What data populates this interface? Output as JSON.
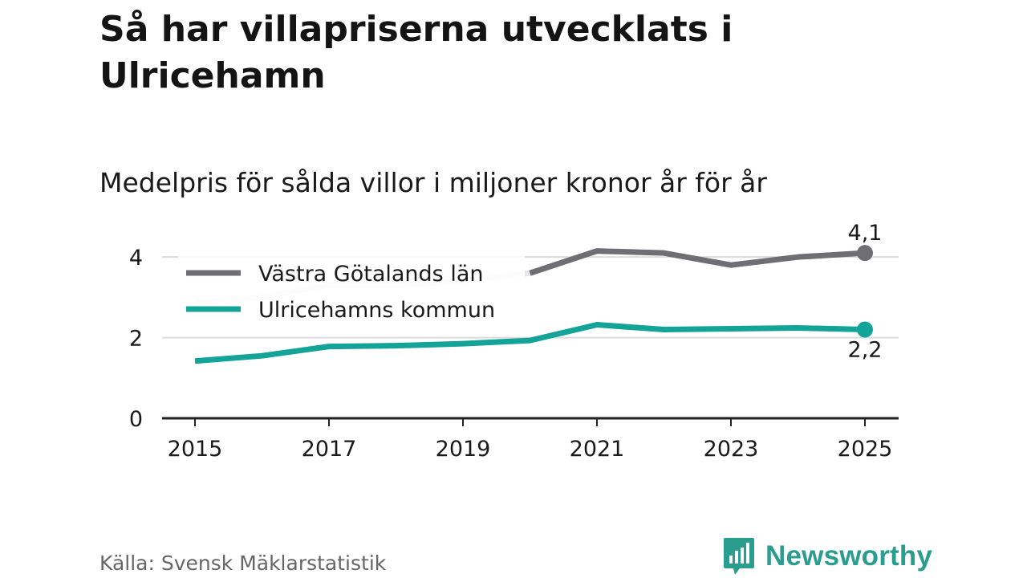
{
  "header": {
    "title": "Så har villapriserna utvecklats i Ulricehamn",
    "subtitle": "Medelpris för sålda villor i miljoner kronor år för år"
  },
  "footer": {
    "source": "Källa: Svensk Mäklarstatistik",
    "brand": "Newsworthy",
    "brand_icon": "newsworthy-logo-icon"
  },
  "colors": {
    "lan": "#6e6e74",
    "lan_faded": "#e6e6e6",
    "kommun": "#13a398",
    "grid": "#dcdcdc",
    "axis": "#222222",
    "brand": "#2a9d8f"
  },
  "chart_data": {
    "type": "line",
    "title": "Så har villapriserna utvecklats i Ulricehamn",
    "subtitle": "Medelpris för sålda villor i miljoner kronor år för år",
    "xlabel": "",
    "ylabel": "",
    "x": [
      2015,
      2016,
      2017,
      2018,
      2019,
      2020,
      2021,
      2022,
      2023,
      2024,
      2025
    ],
    "x_ticks": [
      2015,
      2017,
      2019,
      2021,
      2023,
      2025
    ],
    "x_tick_labels": [
      "2015",
      "2017",
      "2019",
      "2021",
      "2023",
      "2025"
    ],
    "y_ticks": [
      0,
      2,
      4
    ],
    "y_tick_labels": [
      "0",
      "2",
      "4"
    ],
    "ylim": [
      0,
      4.8
    ],
    "grid": true,
    "legend_position": "top-left",
    "series": [
      {
        "name": "Västra Götalands län",
        "values": [
          2.85,
          3.0,
          3.3,
          3.3,
          3.4,
          3.6,
          4.15,
          4.1,
          3.8,
          4.0,
          4.1
        ],
        "end_label": "4,1"
      },
      {
        "name": "Ulricehamns kommun",
        "values": [
          1.42,
          1.55,
          1.78,
          1.8,
          1.85,
          1.93,
          2.32,
          2.2,
          2.22,
          2.24,
          2.2
        ],
        "end_label": "2,2"
      }
    ]
  }
}
